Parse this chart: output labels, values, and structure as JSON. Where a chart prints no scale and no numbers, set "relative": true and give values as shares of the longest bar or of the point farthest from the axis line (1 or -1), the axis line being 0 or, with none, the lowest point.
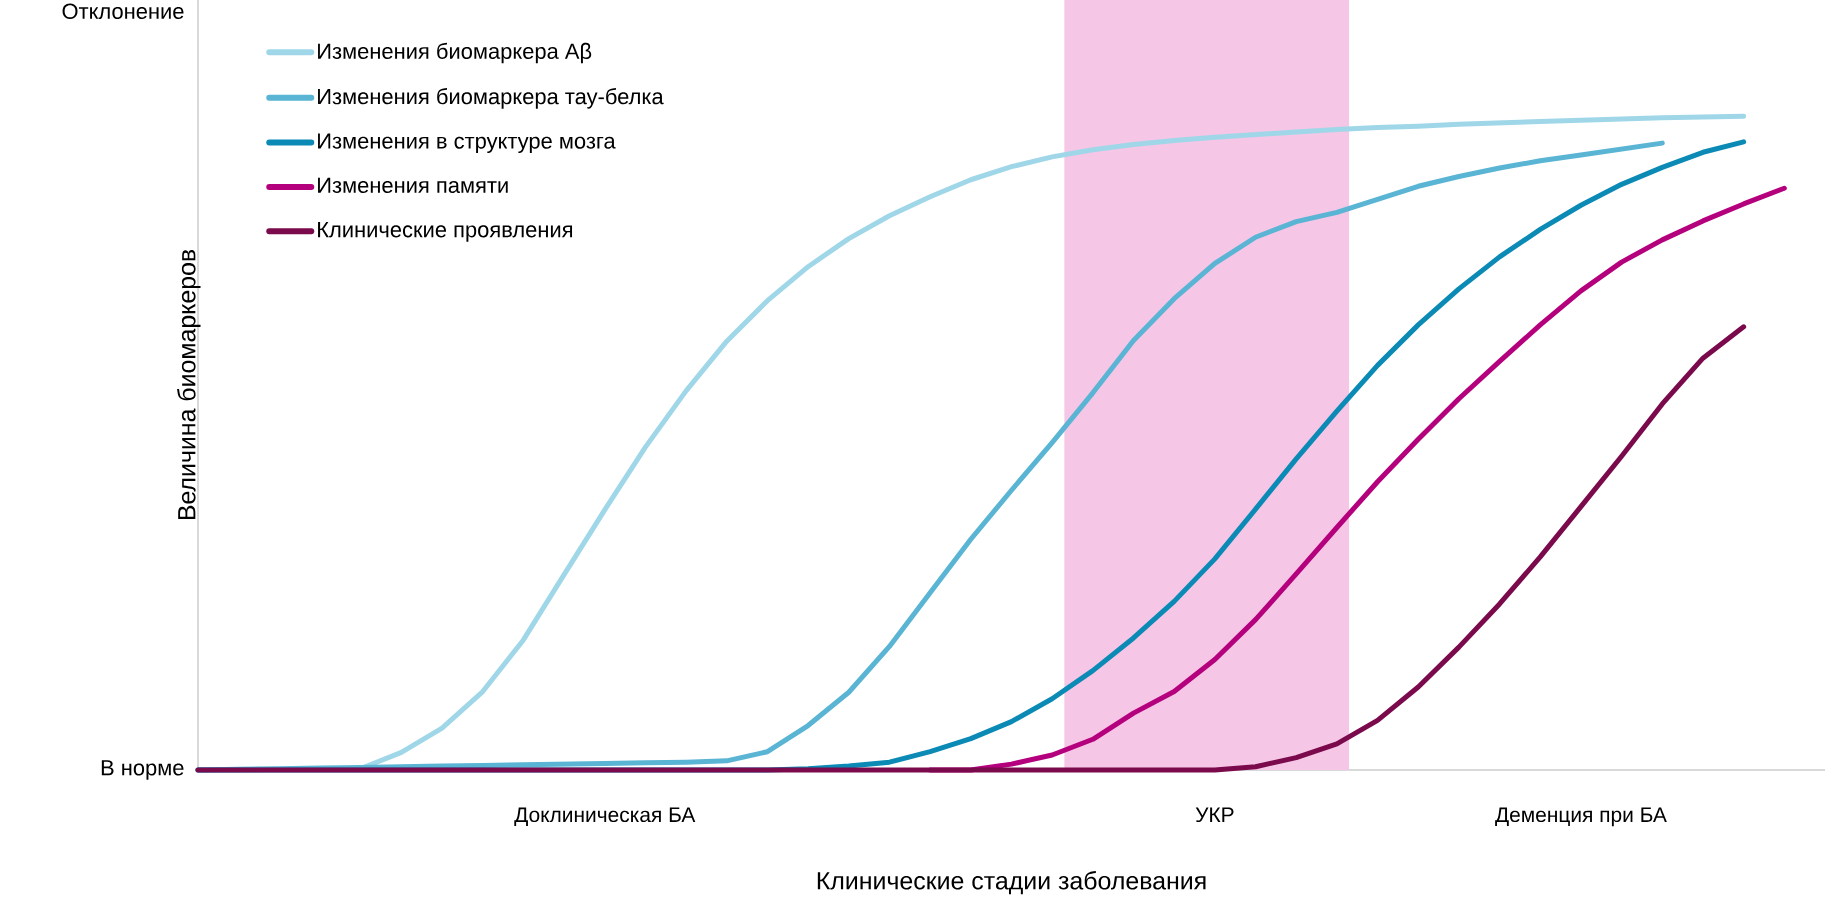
{
  "chart_data": {
    "type": "line",
    "relative": true,
    "xlabel": "Клинические стадии заболевания",
    "ylabel": "Величина биомаркеров",
    "annotations": [
      "В норме",
      "Отклонение"
    ],
    "categories": [
      null,
      null,
      null,
      null,
      null,
      null,
      null,
      null,
      null,
      null,
      "Доклиническая БА",
      null,
      null,
      null,
      null,
      null,
      null,
      null,
      null,
      null,
      null,
      null,
      null,
      null,
      null,
      "УКР",
      null,
      null,
      null,
      null,
      null,
      null,
      null,
      null,
      "Деменция при БА",
      null,
      null,
      null,
      null,
      null
    ],
    "legend": "top left",
    "series": [
      {
        "name": "Изменения биомаркера Aβ",
        "color": "#9fd7e9",
        "values": [
          0,
          0,
          0.001,
          0.001,
          0.002,
          0.027,
          0.064,
          0.12,
          0.199,
          0.299,
          0.398,
          0.494,
          0.58,
          0.656,
          0.718,
          0.77,
          0.813,
          0.848,
          0.877,
          0.903,
          0.923,
          0.938,
          0.949,
          0.957,
          0.963,
          0.968,
          0.972,
          0.976,
          0.98,
          0.983,
          0.985,
          0.988,
          0.99,
          0.992,
          0.994,
          0.996,
          0.998,
          0.999,
          1,
          null
        ]
      },
      {
        "name": "Изменения  биомаркера тау-белка",
        "color": "#5ab4d4",
        "values": [
          0,
          0.001,
          0.002,
          0.003,
          0.004,
          0.005,
          0.006,
          0.007,
          0.008,
          0.009,
          0.01,
          0.011,
          0.012,
          0.014,
          0.028,
          0.068,
          0.119,
          0.189,
          0.271,
          0.353,
          0.428,
          0.501,
          0.577,
          0.657,
          0.721,
          0.775,
          0.815,
          0.839,
          0.853,
          0.873,
          0.893,
          0.908,
          0.921,
          0.932,
          0.941,
          0.95,
          0.959,
          null,
          null,
          null
        ]
      },
      {
        "name": "Изменения в структуре мозга",
        "color": "#0a8ab5",
        "values": [
          0,
          0,
          0,
          0,
          0,
          0,
          0,
          0,
          0,
          0,
          0,
          0,
          0,
          0,
          0,
          0.002,
          0.006,
          0.012,
          0.028,
          0.048,
          0.074,
          0.109,
          0.152,
          0.202,
          0.258,
          0.323,
          0.399,
          0.476,
          0.549,
          0.619,
          0.681,
          0.736,
          0.785,
          0.827,
          0.864,
          0.896,
          0.922,
          0.945,
          0.961,
          null
        ]
      },
      {
        "name": "Изменения памяти",
        "color": "#b5007d",
        "values": [
          null,
          null,
          null,
          null,
          null,
          null,
          null,
          null,
          null,
          null,
          null,
          null,
          null,
          null,
          null,
          null,
          null,
          null,
          0,
          0,
          0.009,
          0.023,
          0.047,
          0.087,
          0.12,
          0.169,
          0.23,
          0.3,
          0.371,
          0.441,
          0.506,
          0.568,
          0.625,
          0.681,
          0.733,
          0.777,
          0.811,
          0.84,
          0.866,
          0.89
        ]
      },
      {
        "name": "Клинические проявления",
        "color": "#7a0a4c",
        "values": [
          0,
          0,
          0,
          0,
          0,
          0,
          0,
          0,
          0,
          0,
          0,
          0,
          0,
          0,
          0,
          0,
          0,
          0,
          0,
          0,
          0,
          0,
          0,
          0,
          0,
          0,
          0.005,
          0.019,
          0.04,
          0.076,
          0.127,
          0.188,
          0.254,
          0.326,
          0.403,
          0.48,
          0.56,
          0.63,
          0.678,
          null
        ]
      }
    ]
  }
}
